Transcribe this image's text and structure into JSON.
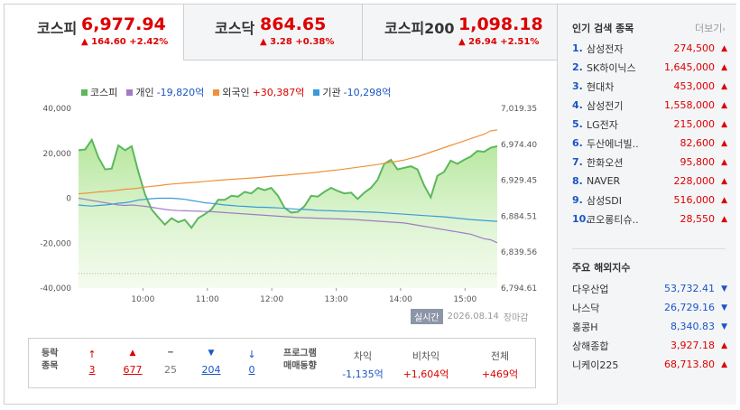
{
  "tabs": [
    {
      "name": "코스피",
      "price": "6,977.94",
      "change": "▲ 164.60 +2.42%"
    },
    {
      "name": "코스닥",
      "price": "864.65",
      "change": "▲ 3.28 +0.38%"
    },
    {
      "name": "코스피200",
      "price": "1,098.18",
      "change": "▲ 26.94 +2.51%"
    }
  ],
  "legend": [
    {
      "name": "코스피",
      "value": "",
      "color": "#5cb85c"
    },
    {
      "name": "개인",
      "value": "-19,820억",
      "color": "#a07cc5"
    },
    {
      "name": "외국인",
      "value": "+30,387억",
      "color": "#f0913a"
    },
    {
      "name": "기관",
      "value": "-10,298억",
      "color": "#3a9ad9"
    }
  ],
  "chart_data": {
    "type": "line",
    "x_ticks": [
      "10:00",
      "11:00",
      "12:00",
      "13:00",
      "14:00",
      "15:00"
    ],
    "y_left_ticks": [
      "40,000",
      "20,000",
      "0",
      "-20,000",
      "-40,000"
    ],
    "y_right_ticks": [
      "7,019.35",
      "6,974.40",
      "6,929.45",
      "6,884.51",
      "6,839.56",
      "6,794.61"
    ],
    "ylim_left": [
      -40000,
      40000
    ],
    "ylim_right": [
      6794.61,
      7019.35
    ],
    "series": [
      {
        "name": "코스피",
        "axis": "right",
        "color": "#5cb85c",
        "values": [
          6967,
          6968,
          6980,
          6958,
          6943,
          6944,
          6973,
          6967,
          6972,
          6940,
          6912,
          6893,
          6883,
          6874,
          6882,
          6877,
          6880,
          6870,
          6882,
          6887,
          6893,
          6905,
          6905,
          6910,
          6909,
          6915,
          6913,
          6920,
          6917,
          6920,
          6910,
          6895,
          6889,
          6890,
          6897,
          6910,
          6909,
          6915,
          6920,
          6916,
          6913,
          6914,
          6906,
          6914,
          6920,
          6930,
          6950,
          6955,
          6943,
          6945,
          6947,
          6943,
          6923,
          6908,
          6935,
          6940,
          6954,
          6950,
          6955,
          6959,
          6966,
          6965,
          6970,
          6972
        ]
      },
      {
        "name": "개인",
        "axis": "left",
        "color": "#a07cc5",
        "values": [
          0,
          -500,
          -1000,
          -1500,
          -2000,
          -2500,
          -3000,
          -3200,
          -3000,
          -3300,
          -3600,
          -4000,
          -4500,
          -5000,
          -5300,
          -5500,
          -5600,
          -5700,
          -5800,
          -5900,
          -6000,
          -6200,
          -6400,
          -6600,
          -6800,
          -7000,
          -7200,
          -7400,
          -7600,
          -7800,
          -8000,
          -8200,
          -8400,
          -8600,
          -8700,
          -8800,
          -8900,
          -9000,
          -9100,
          -9200,
          -9300,
          -9400,
          -9600,
          -9800,
          -10000,
          -10200,
          -10400,
          -10600,
          -10800,
          -11000,
          -11500,
          -12000,
          -12500,
          -13000,
          -13500,
          -14000,
          -14500,
          -15000,
          -15500,
          -16000,
          -17000,
          -18000,
          -18500,
          -19820
        ]
      },
      {
        "name": "외국인",
        "axis": "left",
        "color": "#f0913a",
        "values": [
          2000,
          2200,
          2500,
          2800,
          3000,
          3300,
          3600,
          4000,
          4200,
          4500,
          5000,
          5300,
          5600,
          6000,
          6300,
          6500,
          6800,
          7000,
          7200,
          7500,
          7700,
          8000,
          8200,
          8400,
          8600,
          8800,
          9000,
          9200,
          9500,
          9800,
          10000,
          10200,
          10500,
          10800,
          11000,
          11300,
          11600,
          12000,
          12300,
          12600,
          13000,
          13400,
          13800,
          14200,
          14600,
          15000,
          15500,
          16000,
          16500,
          17000,
          17800,
          18500,
          19500,
          20500,
          21500,
          22500,
          23500,
          24500,
          25500,
          26500,
          27500,
          28500,
          30000,
          30387
        ]
      },
      {
        "name": "기관",
        "axis": "left",
        "color": "#3a9ad9",
        "values": [
          -3000,
          -3300,
          -3500,
          -3200,
          -3000,
          -2700,
          -2200,
          -2000,
          -1500,
          -800,
          -500,
          -200,
          0,
          0,
          0,
          -200,
          -500,
          -1000,
          -1500,
          -2000,
          -2300,
          -2600,
          -3000,
          -3200,
          -3500,
          -3600,
          -3800,
          -4000,
          -4000,
          -4200,
          -4300,
          -4500,
          -4700,
          -4900,
          -5000,
          -5200,
          -5400,
          -5500,
          -5600,
          -5700,
          -5800,
          -5900,
          -6000,
          -6100,
          -6200,
          -6300,
          -6500,
          -6700,
          -6900,
          -7100,
          -7300,
          -7500,
          -7700,
          -7900,
          -8100,
          -8300,
          -8600,
          -8900,
          -9200,
          -9500,
          -9700,
          -9900,
          -10100,
          -10298
        ]
      }
    ]
  },
  "stamp": {
    "badge": "실시간",
    "date": "2026.08.14",
    "status": "장마감"
  },
  "stats": {
    "label": "등락\n종목",
    "items": [
      {
        "icon": "upper-limit",
        "symbol": "↑",
        "count": "3",
        "color": "#d00"
      },
      {
        "icon": "up",
        "symbol": "▲",
        "count": "677",
        "color": "#d00"
      },
      {
        "icon": "flat",
        "symbol": "━",
        "count": "25",
        "color": "#777"
      },
      {
        "icon": "down",
        "symbol": "▼",
        "count": "204",
        "color": "#1a56c4"
      },
      {
        "icon": "lower-limit",
        "symbol": "↓",
        "count": "0",
        "color": "#1a56c4"
      }
    ],
    "program_label": "프로그램\n매매동향",
    "program": [
      {
        "head": "차익",
        "value": "-1,135억",
        "color": "#1a56c4"
      },
      {
        "head": "비차익",
        "value": "+1,604억",
        "color": "#d00"
      },
      {
        "head": "전체",
        "value": "+469억",
        "color": "#d00"
      }
    ]
  },
  "side": {
    "popular_title": "인기 검색 종목",
    "more": "더보기",
    "popular": [
      {
        "no": "1.",
        "name": "삼성전자",
        "price": "274,500"
      },
      {
        "no": "2.",
        "name": "SK하이닉스",
        "price": "1,645,000"
      },
      {
        "no": "3.",
        "name": "현대차",
        "price": "453,000"
      },
      {
        "no": "4.",
        "name": "삼성전기",
        "price": "1,558,000"
      },
      {
        "no": "5.",
        "name": "LG전자",
        "price": "215,000"
      },
      {
        "no": "6.",
        "name": "두산에너빌..",
        "price": "82,600"
      },
      {
        "no": "7.",
        "name": "한화오션",
        "price": "95,800"
      },
      {
        "no": "8.",
        "name": "NAVER",
        "price": "228,000"
      },
      {
        "no": "9.",
        "name": "삼성SDI",
        "price": "516,000"
      },
      {
        "no": "10.",
        "name": "코오롱티슈..",
        "price": "28,550"
      }
    ],
    "overseas_title": "주요 해외지수",
    "overseas": [
      {
        "name": "다우산업",
        "price": "53,732.41",
        "dir": "down",
        "color": "#1a56c4"
      },
      {
        "name": "나스닥",
        "price": "26,729.16",
        "dir": "down",
        "color": "#1a56c4"
      },
      {
        "name": "홍콩H",
        "price": "8,340.83",
        "dir": "down",
        "color": "#1a56c4"
      },
      {
        "name": "상해종합",
        "price": "3,927.18",
        "dir": "up",
        "color": "#d00"
      },
      {
        "name": "니케이225",
        "price": "68,713.80",
        "dir": "up",
        "color": "#d00"
      }
    ]
  }
}
